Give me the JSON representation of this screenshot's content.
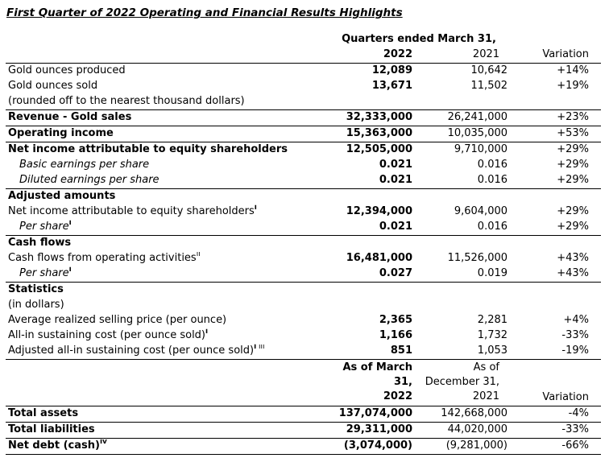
{
  "title": "First Quarter of 2022 Operating and Financial Results Highlights",
  "table1": {
    "header": {
      "span_label": "Quarters ended March 31,",
      "col_2022": "2022",
      "col_2021": "2021",
      "col_variation": "Variation"
    },
    "rows": [
      {
        "label": "Gold ounces produced",
        "v2022": "12,089",
        "v2021": "10,642",
        "variation": "+14%"
      },
      {
        "label": "Gold ounces sold",
        "v2022": "13,671",
        "v2021": "11,502",
        "variation": "+19%"
      },
      {
        "label": "(rounded off to the nearest thousand dollars)",
        "rule": true
      },
      {
        "label": "Revenue - Gold sales",
        "bold": true,
        "v2022": "32,333,000",
        "v2021": "26,241,000",
        "variation": "+23%",
        "rule": true
      },
      {
        "label": "Operating income",
        "bold": true,
        "v2022": "15,363,000",
        "v2021": "10,035,000",
        "variation": "+53%",
        "rule": true
      },
      {
        "label": "Net income attributable to equity shareholders",
        "bold": true,
        "v2022": "12,505,000",
        "v2021": "9,710,000",
        "variation": "+29%"
      },
      {
        "label": "Basic earnings per share",
        "italic": true,
        "indent": true,
        "v2022": "0.021",
        "v2021": "0.016",
        "variation": "+29%"
      },
      {
        "label": "Diluted earnings per share",
        "italic": true,
        "indent": true,
        "v2022": "0.021",
        "v2021": "0.016",
        "variation": "+29%",
        "rule": true
      },
      {
        "label": "Adjusted amounts",
        "bold": true
      },
      {
        "label": "Net income attributable to equity shareholders",
        "sup": "i",
        "sup_bold": true,
        "v2022": "12,394,000",
        "v2021": "9,604,000",
        "variation": "+29%"
      },
      {
        "label": "Per share",
        "sup": "i",
        "sup_bold": true,
        "italic": true,
        "indent": true,
        "v2022": "0.021",
        "v2021": "0.016",
        "variation": "+29%",
        "rule": true
      },
      {
        "label": "Cash flows",
        "bold": true
      },
      {
        "label": "Cash flows from operating activities",
        "sup": "ii",
        "v2022": "16,481,000",
        "v2021": "11,526,000",
        "variation": "+43%"
      },
      {
        "label": "Per share",
        "sup": "i",
        "sup_bold": true,
        "italic": true,
        "indent": true,
        "v2022": "0.027",
        "v2021": "0.019",
        "variation": "+43%",
        "rule": true
      },
      {
        "label": "Statistics",
        "bold": true
      },
      {
        "label": "(in dollars)"
      },
      {
        "label": "Average realized selling price (per ounce)",
        "v2022": "2,365",
        "v2021": "2,281",
        "variation": "+4%"
      },
      {
        "label": "All-in sustaining cost (per ounce sold)",
        "sup": "i",
        "sup_bold": true,
        "v2022": "1,166",
        "v2021": "1,732",
        "variation": "-33%"
      },
      {
        "label": "Adjusted all-in sustaining cost (per ounce sold)",
        "sup": "i",
        "sup_bold": true,
        "sup2": "iii",
        "v2022": "851",
        "v2021": "1,053",
        "variation": "-19%",
        "rule": true
      }
    ]
  },
  "table2": {
    "header": {
      "col_2022_lines": [
        "As of March",
        "31,",
        "2022"
      ],
      "col_2021_lines": [
        "As of",
        "December 31,",
        "2021"
      ],
      "col_variation": "Variation"
    },
    "rows": [
      {
        "label": "Total assets",
        "bold": true,
        "v2022": "137,074,000",
        "v2021": "142,668,000",
        "variation": "-4%",
        "rule": true
      },
      {
        "label": "Total liabilities",
        "bold": true,
        "v2022": "29,311,000",
        "v2021": "44,020,000",
        "variation": "-33%",
        "rule": true
      },
      {
        "label": "Net debt (cash)",
        "sup": "iv",
        "sup_bold": true,
        "bold": true,
        "v2022": "(3,074,000)",
        "v2021": "(9,281,000)",
        "variation": "-66%",
        "rule": true
      }
    ]
  }
}
